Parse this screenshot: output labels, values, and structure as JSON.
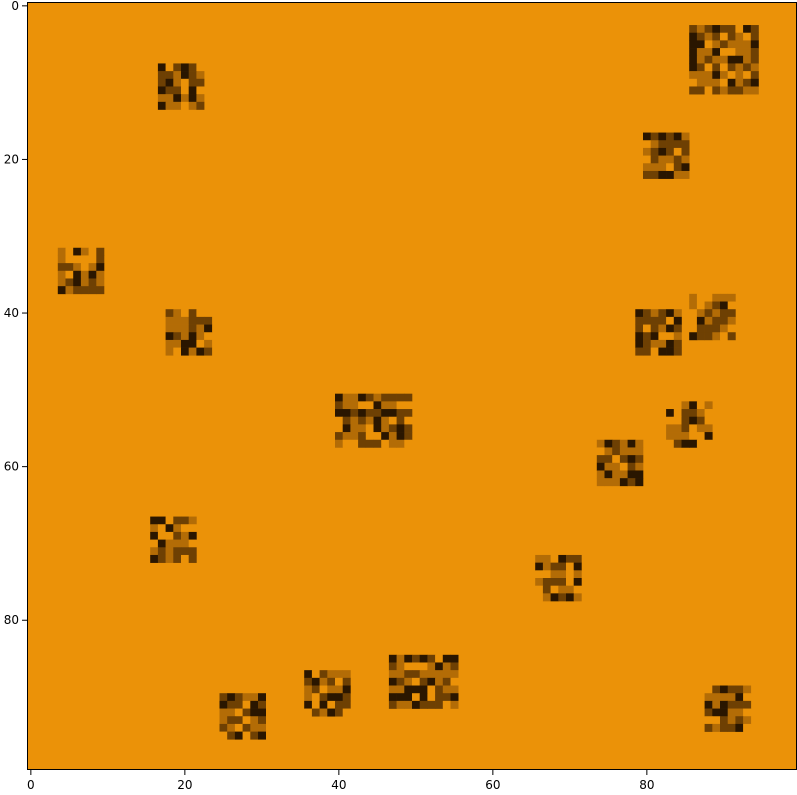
{
  "chart_data": {
    "type": "heatmap",
    "title": "",
    "xlabel": "",
    "ylabel": "",
    "grid_size": [
      100,
      100
    ],
    "xlim": [
      -0.5,
      99.5
    ],
    "ylim": [
      99.5,
      -0.5
    ],
    "grid": false,
    "legend": "none",
    "background_color": "#eb9208",
    "patch_colors": [
      "#eb9208",
      "#b36c06",
      "#6e4003",
      "#2a1600"
    ],
    "x_ticks": [
      {
        "value": 0,
        "label": "0"
      },
      {
        "value": 20,
        "label": "20"
      },
      {
        "value": 40,
        "label": "40"
      },
      {
        "value": 60,
        "label": "60"
      },
      {
        "value": 80,
        "label": "80"
      }
    ],
    "y_ticks": [
      {
        "value": 0,
        "label": "0"
      },
      {
        "value": 20,
        "label": "20"
      },
      {
        "value": 40,
        "label": "40"
      },
      {
        "value": 60,
        "label": "60"
      },
      {
        "value": 80,
        "label": "80"
      }
    ],
    "patches": [
      {
        "x0": 86,
        "y0": 3,
        "w": 9,
        "h": 9
      },
      {
        "x0": 17,
        "y0": 8,
        "w": 6,
        "h": 6
      },
      {
        "x0": 80,
        "y0": 17,
        "w": 6,
        "h": 6
      },
      {
        "x0": 4,
        "y0": 32,
        "w": 6,
        "h": 6
      },
      {
        "x0": 18,
        "y0": 40,
        "w": 6,
        "h": 6
      },
      {
        "x0": 79,
        "y0": 40,
        "w": 6,
        "h": 6
      },
      {
        "x0": 86,
        "y0": 38,
        "w": 6,
        "h": 6
      },
      {
        "x0": 40,
        "y0": 51,
        "w": 10,
        "h": 7
      },
      {
        "x0": 83,
        "y0": 52,
        "w": 6,
        "h": 6
      },
      {
        "x0": 74,
        "y0": 57,
        "w": 6,
        "h": 6
      },
      {
        "x0": 16,
        "y0": 67,
        "w": 6,
        "h": 6
      },
      {
        "x0": 66,
        "y0": 72,
        "w": 6,
        "h": 6
      },
      {
        "x0": 36,
        "y0": 87,
        "w": 6,
        "h": 6
      },
      {
        "x0": 47,
        "y0": 85,
        "w": 9,
        "h": 7
      },
      {
        "x0": 25,
        "y0": 90,
        "w": 6,
        "h": 6
      },
      {
        "x0": 88,
        "y0": 89,
        "w": 6,
        "h": 6
      }
    ]
  }
}
